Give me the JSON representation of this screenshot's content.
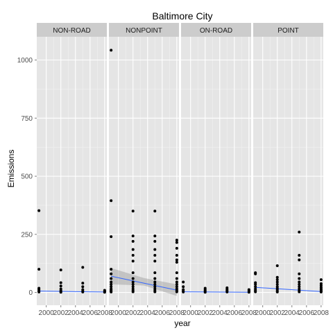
{
  "chart_data": {
    "type": "scatter",
    "title": "Baltimore City",
    "xlabel": "year",
    "ylabel": "Emissions",
    "x_ticks": [
      2000,
      2002,
      2004,
      2006,
      2008
    ],
    "y_ticks": [
      0,
      250,
      500,
      750,
      1000
    ],
    "xlim": [
      1998.7,
      2008.3
    ],
    "ylim": [
      -55,
      1100
    ],
    "grid": true,
    "facets": [
      {
        "name": "NON-ROAD",
        "x": [
          1999,
          1999,
          1999,
          1999,
          1999,
          1999,
          2002,
          2002,
          2002,
          2002,
          2002,
          2002,
          2002,
          2005,
          2005,
          2005,
          2005,
          2005,
          2005,
          2008,
          2008,
          2008,
          2008
        ],
        "y": [
          352,
          100,
          18,
          12,
          6,
          2,
          97,
          42,
          28,
          15,
          8,
          4,
          1,
          108,
          40,
          25,
          12,
          6,
          2,
          9,
          5,
          3,
          1
        ],
        "trend": {
          "x": [
            1999,
            2008
          ],
          "y": [
            6,
            2
          ]
        }
      },
      {
        "name": "NONPOINT",
        "x": [
          1999,
          1999,
          1999,
          1999,
          1999,
          1999,
          1999,
          1999,
          1999,
          1999,
          1999,
          1999,
          1999,
          2002,
          2002,
          2002,
          2002,
          2002,
          2002,
          2002,
          2002,
          2002,
          2002,
          2002,
          2002,
          2002,
          2002,
          2005,
          2005,
          2005,
          2005,
          2005,
          2005,
          2005,
          2005,
          2005,
          2005,
          2005,
          2005,
          2005,
          2005,
          2008,
          2008,
          2008,
          2008,
          2008,
          2008,
          2008,
          2008,
          2008,
          2008,
          2008,
          2008,
          2008,
          2008
        ],
        "y": [
          1042,
          395,
          240,
          100,
          80,
          60,
          45,
          35,
          25,
          15,
          10,
          5,
          2,
          350,
          243,
          220,
          185,
          160,
          135,
          85,
          60,
          45,
          35,
          25,
          15,
          8,
          3,
          350,
          243,
          220,
          185,
          160,
          135,
          85,
          60,
          45,
          35,
          25,
          15,
          8,
          3,
          225,
          215,
          190,
          160,
          140,
          130,
          85,
          60,
          45,
          35,
          25,
          15,
          8,
          3
        ],
        "trend": {
          "x": [
            1999,
            2008
          ],
          "y": [
            70,
            10
          ]
        },
        "band": {
          "x": [
            1999,
            2003.5,
            2008
          ],
          "lower": [
            35,
            30,
            -15
          ],
          "upper": [
            105,
            62,
            35
          ]
        }
      },
      {
        "name": "ON-ROAD",
        "x": [
          1999,
          1999,
          1999,
          1999,
          1999,
          2002,
          2002,
          2002,
          2002,
          2002,
          2005,
          2005,
          2005,
          2005,
          2005,
          2008,
          2008,
          2008,
          2008
        ],
        "y": [
          45,
          25,
          12,
          6,
          2,
          18,
          12,
          8,
          4,
          1,
          20,
          14,
          9,
          5,
          2,
          12,
          8,
          4,
          1
        ],
        "trend": {
          "x": [
            1999,
            2008
          ],
          "y": [
            3,
            1
          ]
        }
      },
      {
        "name": "POINT",
        "x": [
          1999,
          1999,
          1999,
          1999,
          1999,
          1999,
          1999,
          1999,
          2002,
          2002,
          2002,
          2002,
          2002,
          2002,
          2002,
          2002,
          2002,
          2002,
          2005,
          2005,
          2005,
          2005,
          2005,
          2005,
          2005,
          2005,
          2005,
          2005,
          2005,
          2008,
          2008,
          2008,
          2008,
          2008,
          2008,
          2008,
          2008
        ],
        "y": [
          85,
          80,
          42,
          35,
          25,
          15,
          8,
          3,
          115,
          65,
          55,
          45,
          35,
          25,
          18,
          12,
          6,
          2,
          260,
          160,
          140,
          80,
          60,
          45,
          35,
          25,
          15,
          8,
          3,
          55,
          38,
          30,
          22,
          15,
          10,
          5,
          2
        ],
        "trend": {
          "x": [
            1999,
            2008
          ],
          "y": [
            22,
            4
          ]
        }
      }
    ]
  }
}
